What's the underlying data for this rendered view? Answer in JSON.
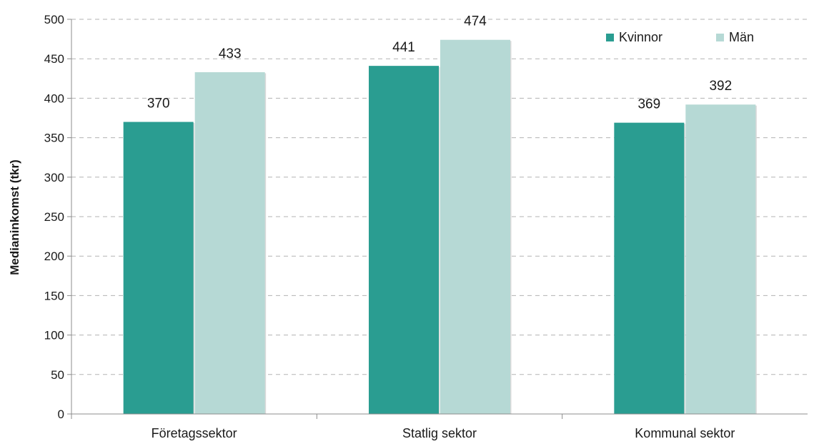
{
  "chart_data": {
    "type": "bar",
    "categories": [
      "Företagssektor",
      "Statlig sektor",
      "Kommunal sektor"
    ],
    "series": [
      {
        "name": "Kvinnor",
        "values": [
          370,
          441,
          369
        ],
        "color": "#2a9d91"
      },
      {
        "name": "Män",
        "values": [
          433,
          474,
          392
        ],
        "color": "#b6d9d5"
      }
    ],
    "title": "",
    "xlabel": "",
    "ylabel": "Medianinkomst (tkr)",
    "ylim": [
      0,
      500
    ],
    "yticks": [
      0,
      50,
      100,
      150,
      200,
      250,
      300,
      350,
      400,
      450,
      500
    ],
    "grid": true,
    "legend": "top-right"
  }
}
